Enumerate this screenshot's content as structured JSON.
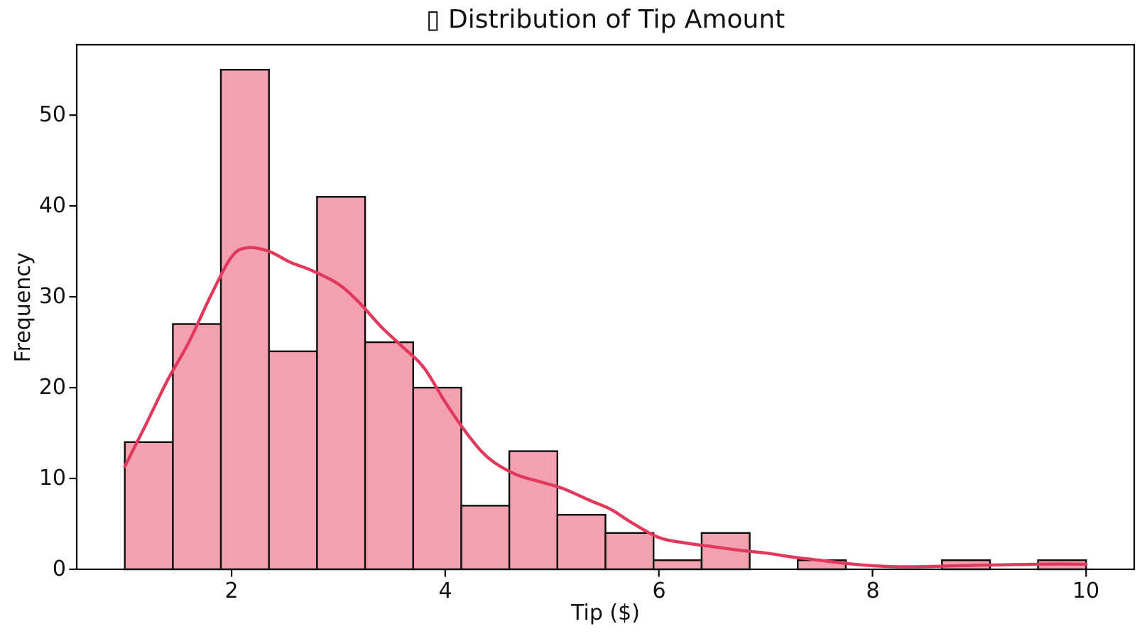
{
  "figure": {
    "title": "▯ Distribution of Tip Amount",
    "xlabel": "Tip ($)",
    "ylabel": "Frequency"
  },
  "chart_data": {
    "type": "bar",
    "subtype": "histogram_with_kde",
    "title": "▯ Distribution of Tip Amount",
    "xlabel": "Tip ($)",
    "ylabel": "Frequency",
    "grid": false,
    "legend_visible": false,
    "xlim": [
      0.55,
      10.45
    ],
    "ylim": [
      0,
      57.75
    ],
    "x_ticks": [
      2,
      4,
      6,
      8,
      10
    ],
    "y_ticks": [
      0,
      10,
      20,
      30,
      40,
      50
    ],
    "bin_edges": [
      1.0,
      1.45,
      1.9,
      2.35,
      2.8,
      3.25,
      3.7,
      4.15,
      4.6,
      5.05,
      5.5,
      5.95,
      6.4,
      6.85,
      7.3,
      7.75,
      8.2,
      8.65,
      9.1,
      9.55,
      10.0
    ],
    "bin_counts": [
      14,
      27,
      55,
      24,
      41,
      25,
      20,
      7,
      13,
      6,
      4,
      1,
      4,
      0,
      1,
      0,
      0,
      1,
      0,
      1
    ],
    "total_observations": 244,
    "kde_line": {
      "name": "kde-curve",
      "points": [
        [
          1.0,
          11.3
        ],
        [
          1.2,
          16.0
        ],
        [
          1.4,
          20.8
        ],
        [
          1.6,
          25.0
        ],
        [
          1.8,
          30.0
        ],
        [
          2.0,
          34.4
        ],
        [
          2.15,
          35.4
        ],
        [
          2.35,
          35.0
        ],
        [
          2.55,
          33.8
        ],
        [
          2.75,
          32.9
        ],
        [
          3.0,
          31.4
        ],
        [
          3.2,
          29.3
        ],
        [
          3.4,
          26.7
        ],
        [
          3.6,
          24.5
        ],
        [
          3.8,
          22.2
        ],
        [
          4.0,
          18.4
        ],
        [
          4.2,
          15.0
        ],
        [
          4.4,
          12.3
        ],
        [
          4.65,
          10.5
        ],
        [
          4.9,
          9.6
        ],
        [
          5.1,
          8.9
        ],
        [
          5.35,
          7.6
        ],
        [
          5.55,
          6.6
        ],
        [
          5.75,
          5.1
        ],
        [
          6.0,
          3.5
        ],
        [
          6.25,
          2.9
        ],
        [
          6.5,
          2.5
        ],
        [
          6.75,
          2.1
        ],
        [
          7.0,
          1.8
        ],
        [
          7.25,
          1.35
        ],
        [
          7.5,
          1.0
        ],
        [
          7.75,
          0.65
        ],
        [
          8.0,
          0.4
        ],
        [
          8.25,
          0.28
        ],
        [
          8.5,
          0.3
        ],
        [
          8.75,
          0.38
        ],
        [
          9.0,
          0.45
        ],
        [
          9.25,
          0.5
        ],
        [
          9.5,
          0.55
        ],
        [
          9.75,
          0.58
        ],
        [
          10.0,
          0.55
        ]
      ]
    },
    "colors": {
      "bar_fill": "#F3A1AF",
      "bar_edge": "#0d0d0d",
      "kde_line": "#E1395C",
      "spine": "#000000",
      "text": "#111111"
    }
  }
}
